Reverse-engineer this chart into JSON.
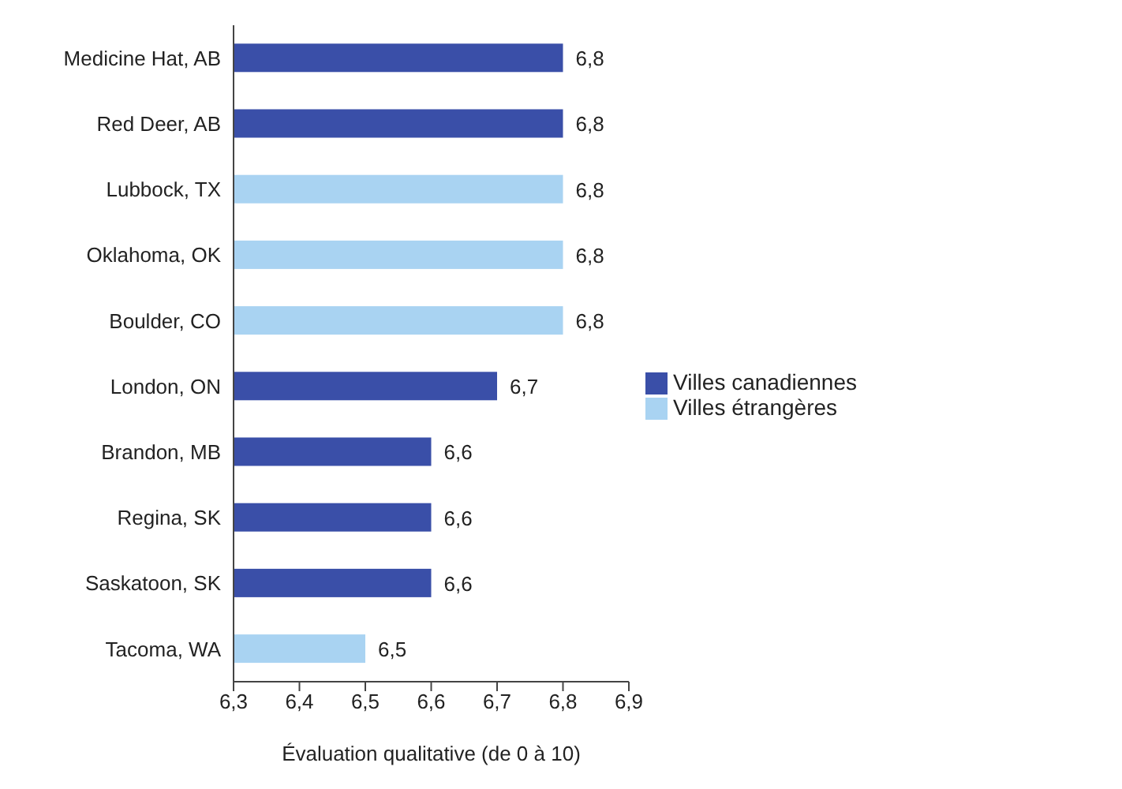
{
  "chart_data": {
    "type": "bar",
    "orientation": "horizontal",
    "stacked": true,
    "xlabel": "Évaluation qualitative (de 0 à 10)",
    "categories": [
      "Medicine Hat, AB",
      "Red Deer, AB",
      "Lubbock, TX",
      "Oklahoma, OK",
      "Boulder, CO",
      "London, ON",
      "Brandon, MB",
      "Regina, SK",
      "Saskatoon, SK",
      "Tacoma, WA"
    ],
    "series": [
      {
        "name": "Villes canadiennes",
        "color": "#3a4fa8",
        "values": [
          6.8,
          6.8,
          null,
          null,
          null,
          6.7,
          6.6,
          6.6,
          6.6,
          null
        ],
        "value_labels": [
          "6,8",
          "6,8",
          null,
          null,
          null,
          "6,7",
          "6,6",
          "6,6",
          "6,6",
          null
        ]
      },
      {
        "name": "Villes étrangères",
        "color": "#a9d3f2",
        "values": [
          null,
          null,
          6.8,
          6.8,
          6.8,
          null,
          null,
          null,
          null,
          6.5
        ],
        "value_labels": [
          null,
          null,
          "6,8",
          "6,8",
          "6,8",
          null,
          null,
          null,
          null,
          "6,5"
        ]
      }
    ],
    "xlim": [
      6.3,
      6.9
    ],
    "xticks": [
      {
        "value": 6.3,
        "label": "6,3"
      },
      {
        "value": 6.4,
        "label": "6,4"
      },
      {
        "value": 6.5,
        "label": "6,5"
      },
      {
        "value": 6.6,
        "label": "6,6"
      },
      {
        "value": 6.7,
        "label": "6,7"
      },
      {
        "value": 6.8,
        "label": "6,8"
      },
      {
        "value": 6.9,
        "label": "6,9"
      }
    ],
    "grid": false,
    "legend": "right"
  }
}
